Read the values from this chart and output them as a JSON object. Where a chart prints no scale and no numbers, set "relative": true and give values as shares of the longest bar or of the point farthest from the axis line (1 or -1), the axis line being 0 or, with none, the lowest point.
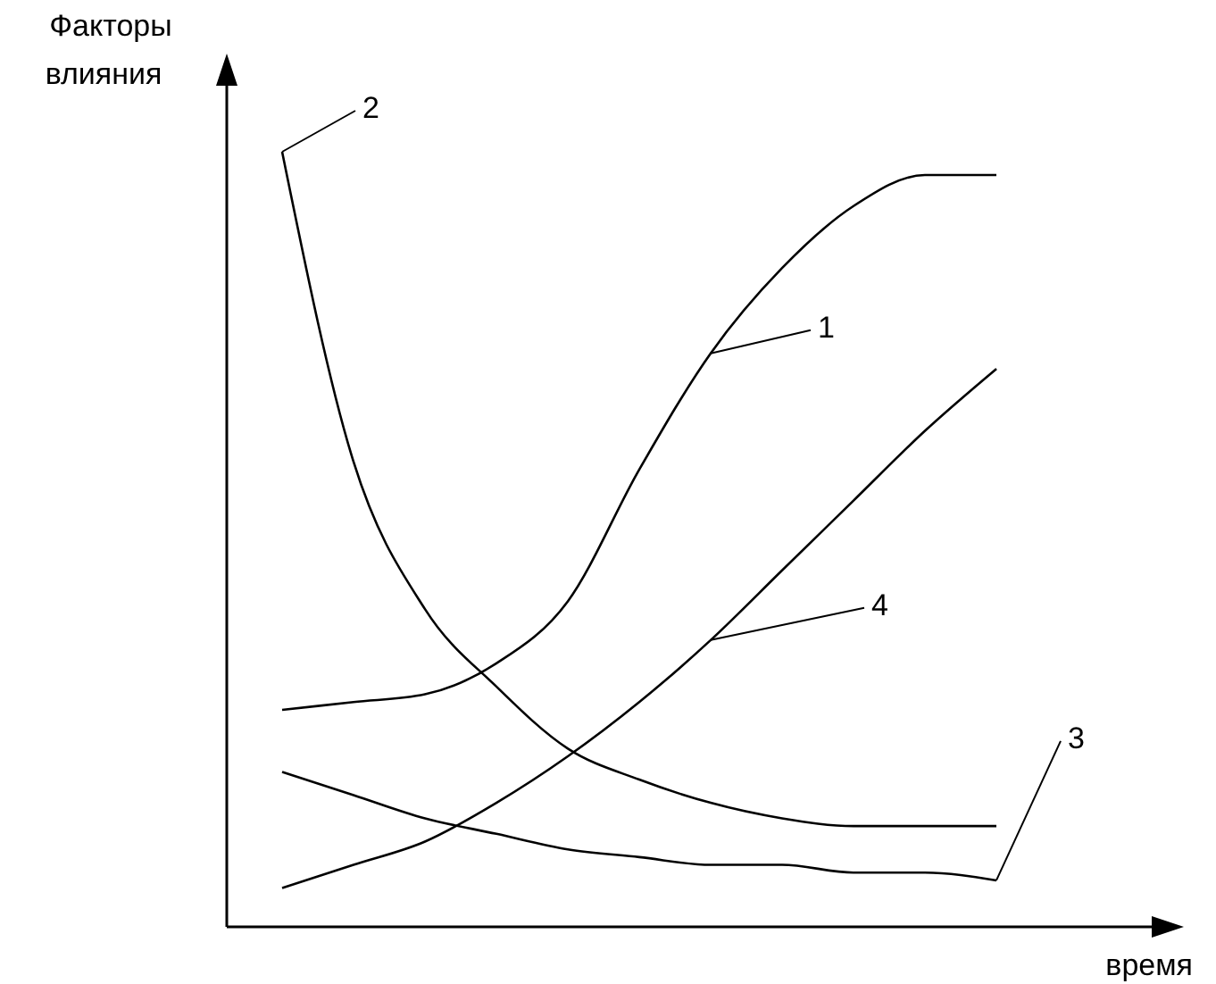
{
  "chart_data": {
    "type": "line",
    "relative": true,
    "xlabel": "время",
    "ylabel": "Факторы влияния",
    "categories": [
      null,
      null,
      null,
      null,
      null,
      null,
      null,
      null,
      null,
      null,
      null
    ],
    "marker": "none",
    "line_style": "solid",
    "series": [
      {
        "name": "1",
        "color": "#000000",
        "values": [
          0.28,
          0.29,
          0.3,
          0.34,
          0.42,
          0.59,
          0.74,
          0.85,
          0.93,
          0.97,
          0.97
        ]
      },
      {
        "name": "2",
        "color": "#000000",
        "values": [
          1,
          0.6,
          0.41,
          0.31,
          0.23,
          0.19,
          0.16,
          0.14,
          0.13,
          0.13,
          0.13
        ]
      },
      {
        "name": "3",
        "color": "#000000",
        "values": [
          0.2,
          0.17,
          0.14,
          0.12,
          0.1,
          0.09,
          0.08,
          0.08,
          0.07,
          0.07,
          0.06
        ]
      },
      {
        "name": "4",
        "color": "#000000",
        "values": [
          0.05,
          0.08,
          0.11,
          0.16,
          0.22,
          0.29,
          0.37,
          0.46,
          0.55,
          0.64,
          0.72
        ]
      }
    ]
  }
}
